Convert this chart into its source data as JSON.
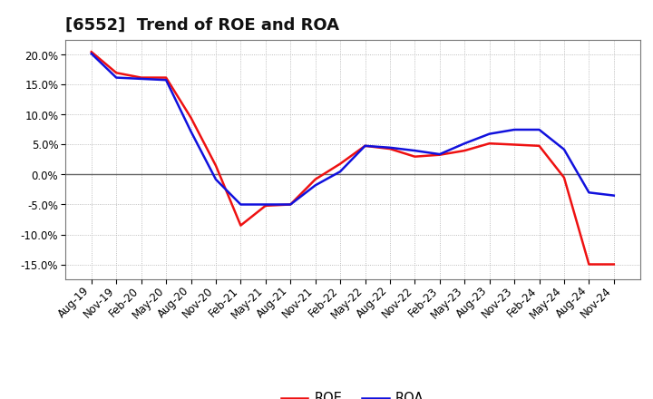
{
  "title": "[6552]  Trend of ROE and ROA",
  "background_color": "#ffffff",
  "plot_bg_color": "#ffffff",
  "grid_color": "#aaaaaa",
  "zero_line_color": "#666666",
  "roe_color": "#ee1111",
  "roa_color": "#1111dd",
  "ylim": [
    -0.175,
    0.225
  ],
  "yticks": [
    -0.15,
    -0.1,
    -0.05,
    0.0,
    0.05,
    0.1,
    0.15,
    0.2
  ],
  "labels": [
    "Aug-19",
    "Nov-19",
    "Feb-20",
    "May-20",
    "Aug-20",
    "Nov-20",
    "Feb-21",
    "May-21",
    "Aug-21",
    "Nov-21",
    "Feb-22",
    "May-22",
    "Aug-22",
    "Nov-22",
    "Feb-23",
    "May-23",
    "Aug-23",
    "Nov-23",
    "Feb-24",
    "May-24",
    "Aug-24",
    "Nov-24"
  ],
  "roe": [
    0.205,
    0.17,
    0.162,
    0.162,
    0.095,
    0.015,
    -0.085,
    -0.052,
    -0.05,
    -0.008,
    0.018,
    0.048,
    0.043,
    0.03,
    0.033,
    0.04,
    0.052,
    0.05,
    0.048,
    -0.005,
    -0.15,
    -0.15
  ],
  "roa": [
    0.202,
    0.162,
    0.16,
    0.158,
    0.072,
    -0.008,
    -0.05,
    -0.05,
    -0.05,
    -0.018,
    0.005,
    0.048,
    0.045,
    0.04,
    0.034,
    0.052,
    0.068,
    0.075,
    0.075,
    0.042,
    -0.03,
    -0.035
  ],
  "legend_labels": [
    "ROE",
    "ROA"
  ],
  "title_fontsize": 13,
  "tick_fontsize": 8.5,
  "legend_fontsize": 10.5
}
